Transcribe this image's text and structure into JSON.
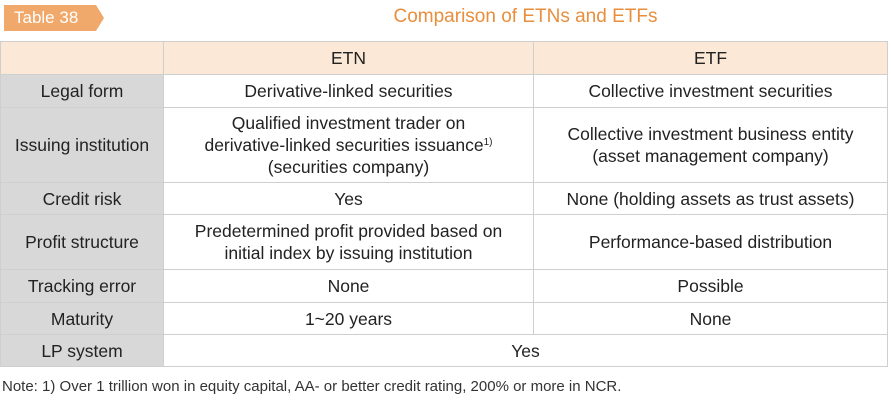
{
  "table_tag": "Table 38",
  "title": "Comparison of ETNs and ETFs",
  "columns": {
    "etn": "ETN",
    "etf": "ETF"
  },
  "rows": {
    "legal_form": {
      "label": "Legal form",
      "etn": "Derivative-linked securities",
      "etf": "Collective investment securities"
    },
    "issuing": {
      "label": "Issuing institution",
      "etn_line1": "Qualified investment trader on",
      "etn_line2": "derivative-linked securities issuance",
      "etn_sup": "1)",
      "etn_line3": "(securities company)",
      "etf_line1": "Collective investment business entity",
      "etf_line2": "(asset management company)"
    },
    "credit_risk": {
      "label": "Credit risk",
      "etn": "Yes",
      "etf": "None (holding assets as trust assets)"
    },
    "profit": {
      "label": "Profit structure",
      "etn_line1": "Predetermined profit provided based on",
      "etn_line2": "initial index by issuing institution",
      "etf": "Performance-based distribution"
    },
    "tracking": {
      "label": "Tracking error",
      "etn": "None",
      "etf": "Possible"
    },
    "maturity": {
      "label": "Maturity",
      "etn": "1~20 years",
      "etf": "None"
    },
    "lp": {
      "label": "LP system",
      "both": "Yes"
    }
  },
  "note": "Note: 1) Over 1 trillion won in equity capital, AA- or better credit rating, 200% or more in NCR."
}
